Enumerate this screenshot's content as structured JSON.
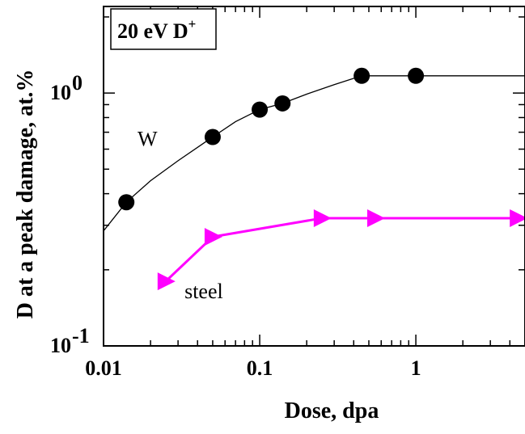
{
  "chart_data": {
    "type": "scatter",
    "title": "",
    "xlabel": "Dose, dpa",
    "ylabel": "D at a peak damage, at.%",
    "x_scale": "log",
    "y_scale": "log",
    "xlim": [
      0.01,
      5
    ],
    "ylim": [
      0.1,
      2.2
    ],
    "x_ticks": [
      {
        "value": 0.01,
        "label": "0.01"
      },
      {
        "value": 0.1,
        "label": "0.1"
      },
      {
        "value": 1,
        "label": "1"
      }
    ],
    "y_ticks": [
      {
        "value": 0.1,
        "base": "10",
        "exp": "-1"
      },
      {
        "value": 1,
        "base": "10",
        "exp": "0"
      }
    ],
    "grid": false,
    "legend_box": {
      "text": "20 eV D",
      "sup": "+",
      "placement": "top-left"
    },
    "series": [
      {
        "name": "W",
        "marker": "circle",
        "color": "#000000",
        "points": [
          {
            "x": 0.014,
            "y": 0.37
          },
          {
            "x": 0.05,
            "y": 0.67
          },
          {
            "x": 0.1,
            "y": 0.86
          },
          {
            "x": 0.14,
            "y": 0.91
          },
          {
            "x": 0.45,
            "y": 1.17
          },
          {
            "x": 1.0,
            "y": 1.17
          }
        ],
        "fit_curve": [
          {
            "x": 0.01,
            "y": 0.285
          },
          {
            "x": 0.014,
            "y": 0.37
          },
          {
            "x": 0.02,
            "y": 0.45
          },
          {
            "x": 0.03,
            "y": 0.54
          },
          {
            "x": 0.05,
            "y": 0.67
          },
          {
            "x": 0.07,
            "y": 0.77
          },
          {
            "x": 0.1,
            "y": 0.86
          },
          {
            "x": 0.14,
            "y": 0.91
          },
          {
            "x": 0.2,
            "y": 0.99
          },
          {
            "x": 0.3,
            "y": 1.08
          },
          {
            "x": 0.45,
            "y": 1.17
          },
          {
            "x": 1.0,
            "y": 1.17
          },
          {
            "x": 5.0,
            "y": 1.17
          }
        ]
      },
      {
        "name": "steel",
        "marker": "triangle-right",
        "color": "#ff00ff",
        "points": [
          {
            "x": 0.025,
            "y": 0.18
          },
          {
            "x": 0.05,
            "y": 0.27
          },
          {
            "x": 0.25,
            "y": 0.32
          },
          {
            "x": 0.55,
            "y": 0.32
          },
          {
            "x": 4.5,
            "y": 0.32
          }
        ]
      }
    ],
    "annotations": [
      {
        "text": "W",
        "x": 0.0165,
        "y": 0.66
      },
      {
        "text": "steel",
        "x": 0.033,
        "y": 0.165
      }
    ]
  }
}
